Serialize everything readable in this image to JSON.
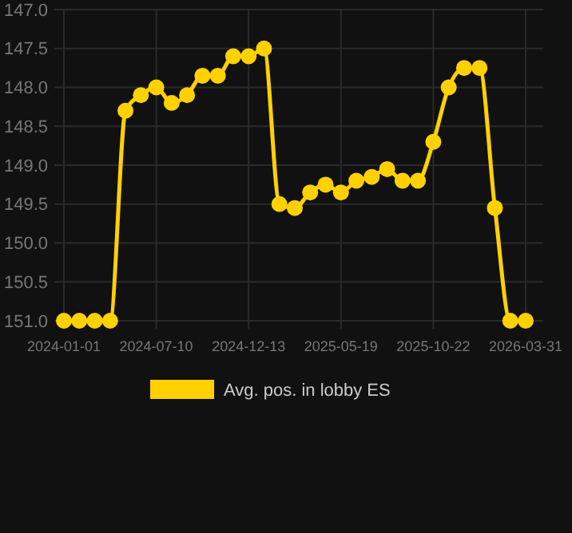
{
  "chart_data": {
    "type": "line",
    "categories": [
      "2024-01-01",
      null,
      null,
      null,
      null,
      null,
      "2024-07-10",
      null,
      null,
      null,
      null,
      null,
      "2024-12-13",
      null,
      null,
      null,
      null,
      null,
      "2025-05-19",
      null,
      null,
      null,
      null,
      null,
      "2025-10-22",
      null,
      null,
      null,
      null,
      null,
      "2026-03-31"
    ],
    "series": [
      {
        "name": "Avg. pos. in lobby ES",
        "color": "#ffd100",
        "values": [
          151,
          151,
          151,
          151,
          148.3,
          148.1,
          148.0,
          148.2,
          148.1,
          147.85,
          147.85,
          147.6,
          147.6,
          147.5,
          149.5,
          149.55,
          149.35,
          149.25,
          149.35,
          149.2,
          149.15,
          149.05,
          149.2,
          149.2,
          148.7,
          148.0,
          147.75,
          147.75,
          149.55,
          151,
          151
        ]
      }
    ],
    "ylim": [
      151,
      147
    ],
    "yticks": [
      {
        "value": 147,
        "label": "147.0"
      },
      {
        "value": 147.5,
        "label": "147.5"
      },
      {
        "value": 148,
        "label": "148.0"
      },
      {
        "value": 148.5,
        "label": "148.5"
      },
      {
        "value": 149,
        "label": "149.0"
      },
      {
        "value": 149.5,
        "label": "149.5"
      },
      {
        "value": 150,
        "label": "150.0"
      },
      {
        "value": 150.5,
        "label": "150.5"
      },
      {
        "value": 151,
        "label": "151.0"
      }
    ],
    "grid": true,
    "legend": "bottom",
    "marker": "circle",
    "line_style": "solid"
  }
}
